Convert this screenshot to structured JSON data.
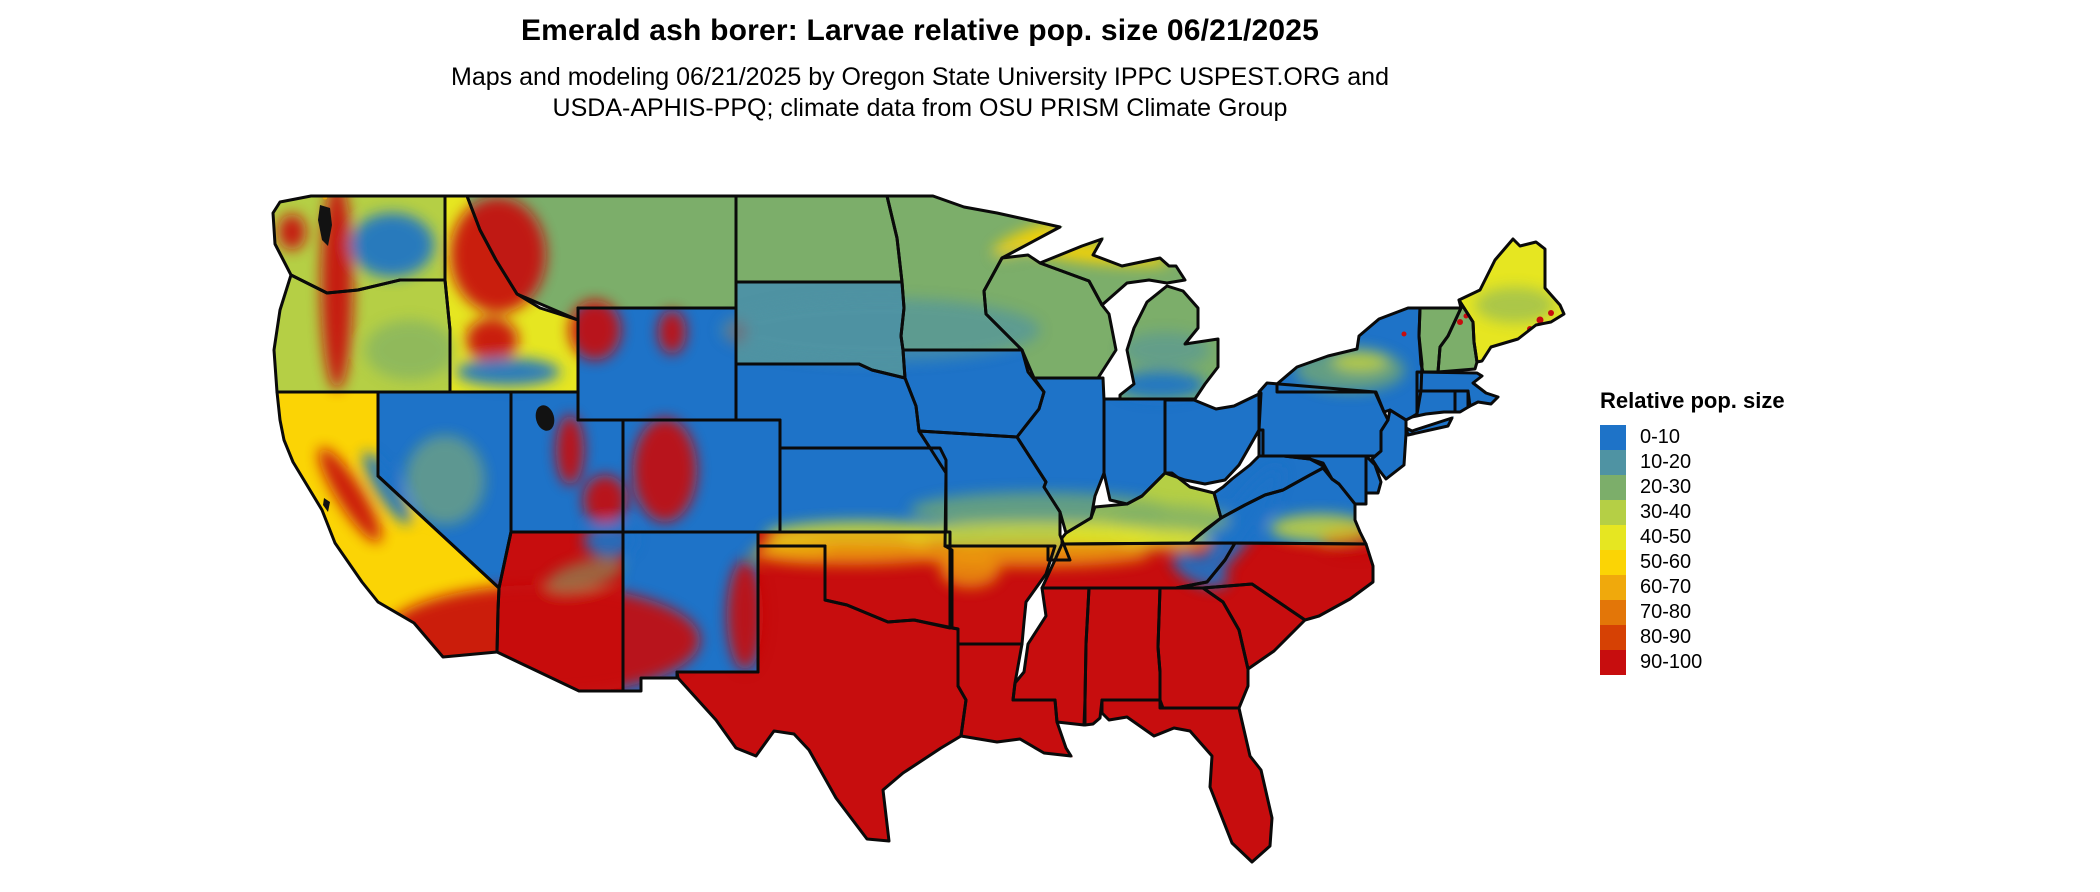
{
  "header": {
    "title": "Emerald ash borer: Larvae relative pop. size 06/21/2025",
    "subtitle_line1": "Maps and modeling 06/21/2025 by Oregon State University IPPC USPEST.ORG and",
    "subtitle_line2": "USDA-APHIS-PPQ; climate data from OSU PRISM Climate Group"
  },
  "legend": {
    "title": "Relative pop. size",
    "items": [
      {
        "label": "0-10",
        "color": "#1e73c8"
      },
      {
        "label": "10-20",
        "color": "#4f93a3"
      },
      {
        "label": "20-30",
        "color": "#7cae6a"
      },
      {
        "label": "30-40",
        "color": "#b5cf45"
      },
      {
        "label": "40-50",
        "color": "#e6e621"
      },
      {
        "label": "50-60",
        "color": "#fbd405"
      },
      {
        "label": "60-70",
        "color": "#f0a90c"
      },
      {
        "label": "70-80",
        "color": "#e37608"
      },
      {
        "label": "80-90",
        "color": "#d64104"
      },
      {
        "label": "90-100",
        "color": "#c70d0e"
      }
    ]
  },
  "map": {
    "region": "Contiguous United States",
    "water_color": "#ffffff",
    "border_color": "#0a0a0a",
    "state_fill_bins": {
      "WA": "30-40",
      "OR": "30-40",
      "CA": "50-60",
      "NV": "0-10",
      "ID": "40-50",
      "MT": "20-30",
      "WY": "0-10",
      "UT": "0-10",
      "CO": "0-10",
      "AZ": "90-100",
      "NM": "0-10",
      "ND": "20-30",
      "SD": "10-20",
      "NE": "0-10",
      "KS": "0-10",
      "OK": "90-100",
      "TX": "90-100",
      "MN": "20-30",
      "IA": "0-10",
      "MO": "0-10",
      "AR": "90-100",
      "LA": "90-100",
      "WI": "20-30",
      "MI": "20-30",
      "IL": "0-10",
      "IN": "0-10",
      "OH": "0-10",
      "KY": "30-40",
      "TN": "90-100",
      "MS": "90-100",
      "AL": "90-100",
      "GA": "90-100",
      "FL": "90-100",
      "SC": "90-100",
      "NC": "90-100",
      "VA": "0-10",
      "WV": "0-10",
      "PA": "0-10",
      "NY": "0-10",
      "NJ": "0-10",
      "DE": "0-10",
      "MD": "0-10",
      "CT": "0-10",
      "RI": "0-10",
      "MA": "0-10",
      "VT": "20-30",
      "NH": "20-30",
      "ME": "40-50"
    }
  }
}
